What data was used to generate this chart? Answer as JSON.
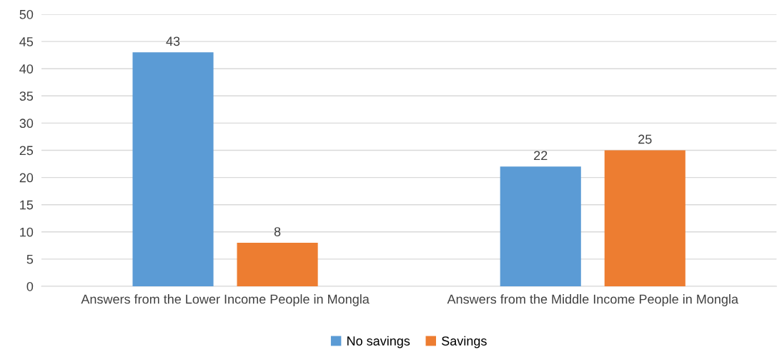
{
  "chart_data": {
    "type": "bar",
    "categories": [
      "Answers from the Lower Income People in Mongla",
      "Answers from the Middle Income People in Mongla"
    ],
    "series": [
      {
        "name": "No savings",
        "color": "#5b9bd5",
        "values": [
          43,
          22
        ]
      },
      {
        "name": "Savings",
        "color": "#ed7d31",
        "values": [
          8,
          25
        ]
      }
    ],
    "ylim": [
      0,
      50
    ],
    "yticks": [
      0,
      5,
      10,
      15,
      20,
      25,
      30,
      35,
      40,
      45,
      50
    ],
    "grid": "y",
    "legend": "bottom",
    "data_labels": true
  }
}
